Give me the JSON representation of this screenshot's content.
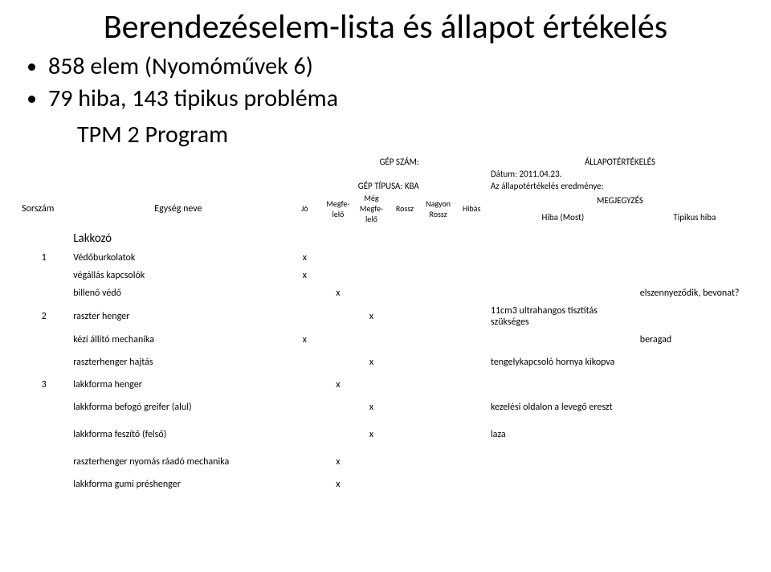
{
  "title_line1": "Berendezéselem-lista és állapot értékelés",
  "bullets": {
    "b1": "858 elem (Nyomóművek 6)",
    "b2": "79 hiba, 143 tipikus probléma",
    "b3": "TPM 2 Program"
  },
  "header": {
    "sorszam": "Sorszám",
    "egyseg_neve": "Egység neve",
    "jo": "Jó",
    "megfelelo": "Megfe-\nlelő",
    "meg_megfelelo": "Még\nMegfe-\nlelő",
    "rossz": "Rossz",
    "nagyon_rossz": "Nagyon\nRossz",
    "hibas": "Hibás",
    "gep_szam_lbl": "GÉP SZÁM:",
    "gep_tipusa_lbl": "GÉP TÍPUSA: KBA",
    "allapot_lbl": "ÁLLAPOTÉRTÉKELÉS",
    "datum": "Dátum: 2011.04.23.",
    "eredmeny": "Az állapotértékelés eredménye:",
    "megjegyzes": "MEGJEGYZÉS",
    "hiba_most": "Hiba (Most)",
    "tipikus_hiba": "Tipikus hiba"
  },
  "section": "Lakkozó",
  "rows": [
    {
      "n": "1",
      "name": "Védőburkolatok",
      "jo": "x",
      "mf": "",
      "mmf": "",
      "r": "",
      "nr": "",
      "h": "",
      "c": "",
      "t": ""
    },
    {
      "n": "",
      "name": "végállás kapcsolók",
      "jo": "x",
      "mf": "",
      "mmf": "",
      "r": "",
      "nr": "",
      "h": "",
      "c": "",
      "t": ""
    },
    {
      "n": "",
      "name": "billenő védő",
      "jo": "",
      "mf": "x",
      "mmf": "",
      "r": "",
      "nr": "",
      "h": "",
      "c": "",
      "t": "elszennyeződik, bevonat?"
    },
    {
      "n": "2",
      "name": "raszter henger",
      "jo": "",
      "mf": "",
      "mmf": "x",
      "r": "",
      "nr": "",
      "h": "",
      "c": "11cm3 ultrahangos tisztítás szükséges",
      "t": ""
    },
    {
      "n": "",
      "name": "kézi állító mechanika",
      "jo": "x",
      "mf": "",
      "mmf": "",
      "r": "",
      "nr": "",
      "h": "",
      "c": "",
      "t": "beragad"
    },
    {
      "n": "",
      "name": "raszterhenger hajtás",
      "jo": "",
      "mf": "",
      "mmf": "x",
      "r": "",
      "nr": "",
      "h": "",
      "c": "tengelykapcsoló hornya kikopva",
      "t": ""
    },
    {
      "n": "3",
      "name": "lakkforma henger",
      "jo": "",
      "mf": "x",
      "mmf": "",
      "r": "",
      "nr": "",
      "h": "",
      "c": "",
      "t": ""
    },
    {
      "n": "",
      "name": "lakkforma befogó greifer (alul)",
      "jo": "",
      "mf": "",
      "mmf": "x",
      "r": "",
      "nr": "",
      "h": "",
      "c": "kezelési oldalon a levegő ereszt",
      "t": ""
    },
    {
      "n": "",
      "name": "lakkforma feszítő (felső)",
      "jo": "",
      "mf": "",
      "mmf": "x",
      "r": "",
      "nr": "",
      "h": "",
      "c": "laza",
      "t": ""
    },
    {
      "n": "",
      "name": "raszterhenger nyomás ráadó mechanika",
      "jo": "",
      "mf": "x",
      "mmf": "",
      "r": "",
      "nr": "",
      "h": "",
      "c": "",
      "t": ""
    },
    {
      "n": "",
      "name": "lakkforma gumi préshenger",
      "jo": "",
      "mf": "x",
      "mmf": "",
      "r": "",
      "nr": "",
      "h": "",
      "c": "",
      "t": ""
    }
  ]
}
